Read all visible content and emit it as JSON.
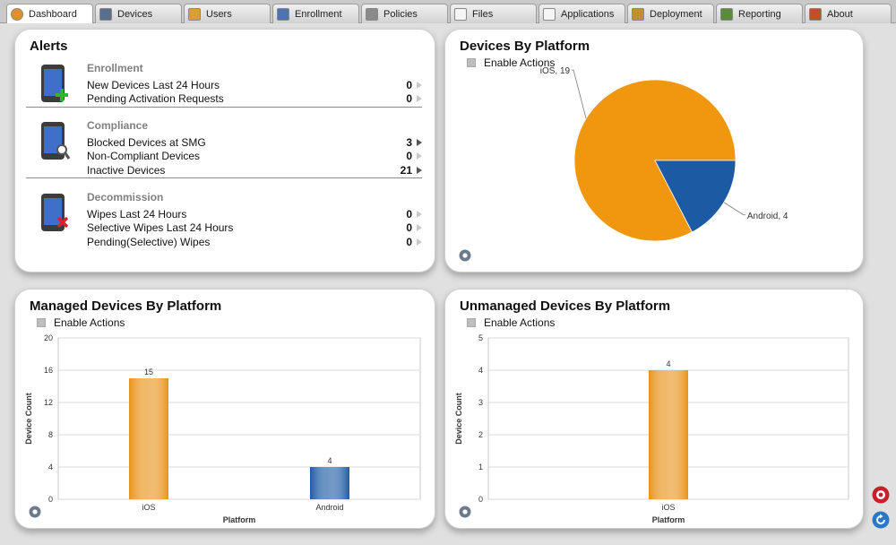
{
  "tabs": [
    {
      "label": "Dashboard",
      "icon": "pie-chart-icon",
      "active": true
    },
    {
      "label": "Devices",
      "icon": "devices-icon"
    },
    {
      "label": "Users",
      "icon": "users-icon"
    },
    {
      "label": "Enrollment",
      "icon": "enrollment-icon"
    },
    {
      "label": "Policies",
      "icon": "policies-gear-icon"
    },
    {
      "label": "Files",
      "icon": "file-icon"
    },
    {
      "label": "Applications",
      "icon": "applications-icon"
    },
    {
      "label": "Deployment",
      "icon": "deployment-icon"
    },
    {
      "label": "Reporting",
      "icon": "bar-chart-icon"
    },
    {
      "label": "About",
      "icon": "home-icon"
    }
  ],
  "alerts": {
    "title": "Alerts",
    "sections": [
      {
        "heading": "Enrollment",
        "icon": "phone-add-icon",
        "rows": [
          {
            "label": "New Devices Last 24 Hours",
            "value": "0",
            "active": false
          },
          {
            "label": "Pending Activation Requests",
            "value": "0",
            "active": false
          }
        ]
      },
      {
        "heading": "Compliance",
        "icon": "phone-search-icon",
        "rows": [
          {
            "label": "Blocked Devices at SMG",
            "value": "3",
            "active": true
          },
          {
            "label": "Non-Compliant Devices",
            "value": "0",
            "active": false
          },
          {
            "label": "Inactive Devices",
            "value": "21",
            "active": true
          }
        ]
      },
      {
        "heading": "Decommission",
        "icon": "phone-wipe-icon",
        "rows": [
          {
            "label": "Wipes Last 24 Hours",
            "value": "0",
            "active": false
          },
          {
            "label": "Selective Wipes Last 24 Hours",
            "value": "0",
            "active": false
          },
          {
            "label": "Pending(Selective) Wipes",
            "value": "0",
            "active": false
          }
        ]
      }
    ]
  },
  "platform": {
    "title": "Devices By Platform",
    "enable_actions": "Enable Actions",
    "chart_data": {
      "type": "pie",
      "slices": [
        {
          "label": "iOS",
          "value": 19,
          "color": "#f0960f",
          "data_label": "iOS, 19"
        },
        {
          "label": "Android",
          "value": 4,
          "color": "#1c5ba3",
          "data_label": "Android, 4"
        }
      ]
    }
  },
  "managed": {
    "title": "Managed Devices By Platform",
    "enable_actions": "Enable Actions",
    "chart_data": {
      "type": "bar",
      "categories": [
        "iOS",
        "Android"
      ],
      "values": [
        15,
        4
      ],
      "colors": [
        "#e8931a",
        "#1c5ba3"
      ],
      "ylim": [
        0,
        20
      ],
      "yticks": [
        0,
        4,
        8,
        12,
        16,
        20
      ],
      "xlabel": "Platform",
      "ylabel": "Device Count",
      "grid": true
    }
  },
  "unmanaged": {
    "title": "Unmanaged Devices By Platform",
    "enable_actions": "Enable Actions",
    "chart_data": {
      "type": "bar",
      "categories": [
        "iOS"
      ],
      "values": [
        4
      ],
      "colors": [
        "#e8931a"
      ],
      "ylim": [
        0,
        5
      ],
      "yticks": [
        0,
        1,
        2,
        3,
        4,
        5
      ],
      "xlabel": "Platform",
      "ylabel": "Device Count",
      "grid": true
    }
  }
}
